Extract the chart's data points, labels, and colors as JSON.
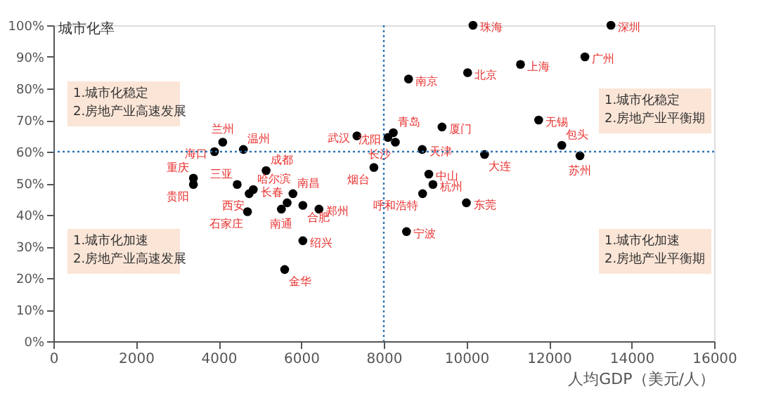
{
  "chart_data": {
    "type": "scatter",
    "xlabel": "人均GDP（美元/人）",
    "ylabel": "城市化率",
    "x": [
      8600,
      4100,
      3900,
      4600,
      7350,
      8100,
      8230,
      8280,
      7760,
      5150,
      3390,
      3390,
      4450,
      4840,
      4740,
      5800,
      5660,
      4700,
      5520,
      6040,
      6430,
      6040,
      5600,
      8940,
      8550,
      9090,
      9190,
      10000,
      10440,
      12750,
      10160,
      13500,
      12870,
      11310,
      10030,
      11750,
      9410,
      8930,
      12310
    ],
    "series": [
      {
        "color": "#000000",
        "values": [
          83,
          63,
          60,
          60.7,
          65,
          64.5,
          66,
          63,
          55,
          54,
          51.6,
          49.6,
          49.6,
          48,
          46.7,
          46.7,
          43.8,
          41,
          41.8,
          43,
          41.8,
          31.8,
          22.7,
          46.7,
          34.7,
          52.9,
          49.6,
          43.8,
          59.1,
          58.7,
          100,
          100,
          90,
          87.6,
          85,
          70,
          67.8,
          60.7,
          62
        ],
        "value_labels": [
          "南京",
          "兰州",
          "海口",
          "温州",
          "武汉",
          "沈阳",
          "青岛",
          "长沙",
          "烟台",
          "成都",
          "重庆",
          "贵阳",
          "三亚",
          "哈尔滨",
          "西安",
          "南昌",
          "长春",
          "石家庄",
          "南通",
          "合肥",
          "郑州",
          "绍兴",
          "金华",
          "呼和浩特",
          "宁波",
          "中山",
          "杭州",
          "东莞",
          "大连",
          "苏州",
          "珠海",
          "深圳",
          "广州",
          "上海",
          "北京",
          "无锡",
          "厦门",
          "天津",
          "包头"
        ]
      }
    ],
    "xlim": [
      0,
      16000
    ],
    "xticks": [
      0,
      2000,
      4000,
      6000,
      8000,
      10000,
      12000,
      14000,
      16000
    ],
    "ylim": [
      0,
      100
    ],
    "yticks": [
      {
        "value": 0,
        "label": "0%"
      },
      {
        "value": 10,
        "label": "10%"
      },
      {
        "value": 20,
        "label": "20%"
      },
      {
        "value": 30,
        "label": "30%"
      },
      {
        "value": 40,
        "label": "40%"
      },
      {
        "value": 50,
        "label": "50%"
      },
      {
        "value": 60,
        "label": "60%"
      },
      {
        "value": 70,
        "label": "70%"
      },
      {
        "value": 80,
        "label": "80%"
      },
      {
        "value": 90,
        "label": "90%"
      },
      {
        "value": 100,
        "label": "100%"
      }
    ],
    "ref_lines": [
      {
        "axis": "x",
        "value": 8000,
        "color": "#2e75b6",
        "line_style": "dotted"
      },
      {
        "axis": "y",
        "value": 60,
        "color": "#2e75b6",
        "line_style": "dotted"
      }
    ],
    "annotations": [
      "1.城市化稳定\n2.房地产业高速发展",
      "1.城市化稳定\n2.房地产业平衡期",
      "1.城市化加速\n2.房地产业高速发展",
      "1.城市化加速\n2.房地产业平衡期"
    ],
    "marker": "circle",
    "grid": false
  }
}
